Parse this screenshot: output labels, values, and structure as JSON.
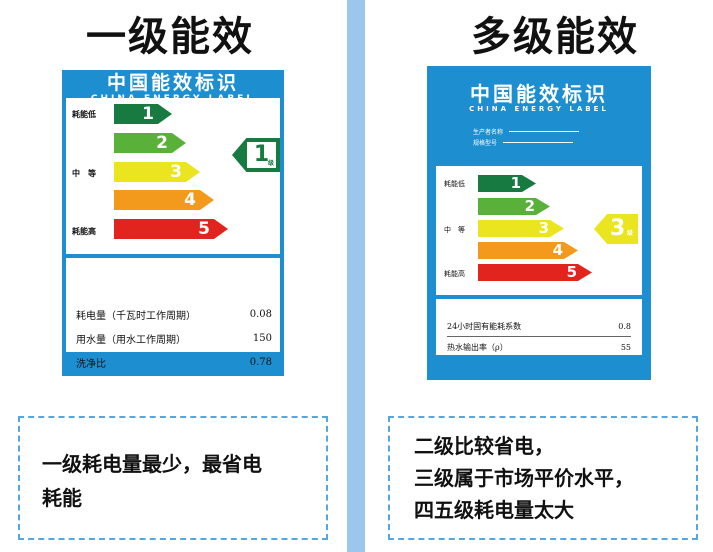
{
  "headings": {
    "left": "一级能效",
    "right": "多级能效"
  },
  "label_left": {
    "title": "中国能效标识",
    "subtitle": "CHINA ENERGY LABEL",
    "scale_labels": {
      "low": "耗能低",
      "mid": "中　等",
      "high": "耗能高"
    },
    "grades": [
      "1",
      "2",
      "3",
      "4",
      "5"
    ],
    "badge": {
      "value": "1",
      "unit": "级"
    },
    "table": [
      {
        "name": "耗电量（千瓦时工作周期）",
        "value": "0.08"
      },
      {
        "name": "用水量（用水工作周期）",
        "value": "150"
      },
      {
        "name": "洗净比",
        "value": "0.78"
      }
    ]
  },
  "label_right": {
    "title": "中国能效标识",
    "subtitle": "CHINA ENERGY LABEL",
    "info": [
      {
        "label": "生产者名称"
      },
      {
        "label": "规格型号"
      }
    ],
    "scale_labels": {
      "low": "耗能低",
      "mid": "中　等",
      "high": "耗能高"
    },
    "grades": [
      "1",
      "2",
      "3",
      "4",
      "5"
    ],
    "badge": {
      "value": "3",
      "unit": "级"
    },
    "table": [
      {
        "name": "24小时固有能耗系数",
        "value": "0.8"
      },
      {
        "name": "热水输出率（ρ）",
        "value": "55"
      }
    ]
  },
  "captions": {
    "left": [
      "一级耗电量最少，最省电",
      "耗能"
    ],
    "right": [
      "二级比较省电，",
      "三级属于市场平价水平，",
      "四五级耗电量太大"
    ]
  },
  "colors": {
    "grade1": "#177a41",
    "grade2": "#5ab13a",
    "grade3": "#eae51f",
    "grade4": "#f39a1c",
    "grade5": "#e2241e",
    "label_blue": "#1d8fd0",
    "divider": "#9cc6ec"
  }
}
